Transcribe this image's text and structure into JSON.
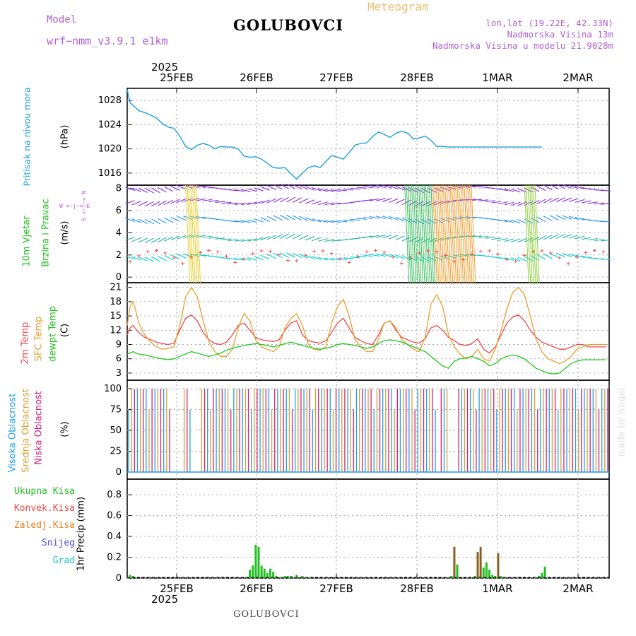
{
  "header": {
    "model_label": "Model",
    "model_name": "wrf−nmm_v3.9.1  e1km",
    "station": "GOLUBOVCI",
    "meteogram": "Meteogram",
    "lonlat": "lon,lat (19.22E, 42.33N)",
    "altitude": "Nadmorska Visina 13m",
    "model_altitude": "Nadmorska Visina u modelu 21.9028m",
    "footer_station": "GOLUBOVCI",
    "credit": "made by Angel"
  },
  "colors": {
    "pressure": "#1ca0e0",
    "temp2m": "#f04848",
    "sfc": "#e8a030",
    "dewpt": "#20c820",
    "purple": "#b060d0",
    "precip_total": "#20c020",
    "precip_conv": "#f04848",
    "precip_frozen": "#f08020",
    "precip_snow": "#5050e0",
    "precip_grad": "#20c0c0",
    "cloud_high": "#20a0e8",
    "cloud_mid": "#d8a030",
    "cloud_low": "#d02080"
  },
  "time_axis": {
    "year": "2025",
    "day_labels": [
      "25FEB",
      "26FEB",
      "27FEB",
      "28FEB",
      "1MAR",
      "2MAR"
    ]
  },
  "panels": {
    "pressure": {
      "ylabel_name": "Pritisak na nivou mora",
      "unit": "(hPa)",
      "ticks": [
        "1016",
        "1020",
        "1024",
        "1028"
      ]
    },
    "wind": {
      "ylabel_name_1": "10m Vjetar",
      "ylabel_name_2": "Brzina i Pravac",
      "unit": "(m/s)",
      "ticks": [
        "0",
        "2",
        "4",
        "6",
        "8"
      ],
      "compass_h": "W <−|−> E",
      "compass_v": "S <−|−> N"
    },
    "temperature": {
      "label_2m": "2m Temp",
      "label_sfc": "SFC Temp",
      "label_dew": "dewpt Temp",
      "unit": "(C)",
      "ticks": [
        "3",
        "6",
        "9",
        "12",
        "15",
        "18",
        "21"
      ]
    },
    "clouds": {
      "label_high": "Visoka Oblacnost",
      "label_mid": "Srednja Oblacnost",
      "label_low": "Niska Oblacnost",
      "unit": "(%)",
      "ticks": [
        "0",
        "25",
        "50",
        "75",
        "100"
      ]
    },
    "precip": {
      "legend": [
        "Ukupna Kisa",
        "Konvek.Kisa",
        "Zaledj.Kisa",
        "Snijeg",
        "Grad"
      ],
      "ylabel": "1hr Precip (mm)",
      "ticks": [
        "0",
        "0.2",
        "0.4",
        "0.6",
        "0.8"
      ]
    }
  },
  "chart_data": [
    {
      "type": "line",
      "name": "pressure",
      "x_hours": [
        0,
        1,
        2,
        4,
        6,
        8,
        10,
        12,
        14,
        16,
        18,
        20,
        22,
        24,
        26,
        28,
        30,
        32,
        34,
        36,
        38,
        40,
        42,
        44,
        46,
        48,
        50,
        52,
        54,
        56,
        58,
        60,
        62,
        64,
        66,
        68,
        70,
        72,
        74,
        76,
        78,
        80,
        82,
        84,
        86,
        88,
        90,
        92,
        94,
        96,
        98,
        100,
        102,
        104,
        106,
        108,
        110,
        112,
        114,
        116,
        118,
        120,
        122,
        124,
        126,
        128,
        130,
        132,
        134,
        136,
        138,
        140,
        142
      ],
      "y": [
        1029.8,
        1027.6,
        1027.2,
        1026.3,
        1026.0,
        1025.6,
        1025.1,
        1024.2,
        1023.6,
        1023.4,
        1022.1,
        1020.4,
        1019.9,
        1020.6,
        1020.9,
        1020.6,
        1020.0,
        1020.4,
        1020.3,
        1020.3,
        1020.0,
        1018.8,
        1018.6,
        1018.7,
        1018.3,
        1017.6,
        1016.9,
        1016.8,
        1016.9,
        1015.9,
        1015.0,
        1016.0,
        1016.9,
        1017.2,
        1016.9,
        1017.9,
        1018.9,
        1018.6,
        1018.3,
        1019.4,
        1020.6,
        1020.9,
        1021.0,
        1022.0,
        1022.8,
        1022.4,
        1021.9,
        1022.6,
        1022.9,
        1022.6,
        1021.6,
        1021.8,
        1022.1,
        1021.4,
        1020.4,
        1020.4,
        1020.3,
        1020.3,
        1020.3,
        1020.3,
        1020.3,
        1020.3,
        1020.3,
        1020.3,
        1020.3,
        1020.3,
        1020.3,
        1020.3,
        1020.3,
        1020.3,
        1020.3,
        1020.3,
        1020.3
      ],
      "ylim": [
        1014,
        1030
      ]
    },
    {
      "type": "line",
      "name": "temperature",
      "x_hours": [
        0,
        1,
        2,
        3,
        4,
        6,
        8,
        10,
        12,
        14,
        16,
        18,
        20,
        22,
        24,
        26,
        28,
        30,
        32,
        34,
        36,
        38,
        40,
        42,
        44,
        46,
        48,
        50,
        52,
        54,
        56,
        58,
        60,
        62,
        64,
        66,
        68,
        70,
        72,
        74,
        76,
        78,
        80,
        82,
        84,
        86,
        88,
        90,
        92,
        94,
        96,
        98,
        100,
        102,
        104,
        106,
        108,
        110,
        112,
        114,
        116,
        118,
        120,
        122,
        124,
        126,
        128,
        130,
        132,
        134,
        136,
        138,
        140,
        142,
        144,
        146,
        148,
        150,
        152,
        154,
        156,
        158,
        160,
        162,
        164
      ],
      "series": [
        {
          "name": "2m Temp",
          "key": "t2m",
          "values": [
            11.0,
            12.5,
            13.0,
            12.2,
            11.5,
            10.5,
            10.0,
            9.5,
            9.2,
            9.0,
            9.3,
            12.0,
            14.5,
            15.2,
            14.0,
            11.5,
            10.0,
            9.2,
            9.0,
            9.5,
            11.0,
            13.0,
            13.5,
            12.0,
            10.5,
            10.0,
            9.8,
            9.6,
            10.0,
            12.0,
            13.5,
            14.0,
            11.0,
            9.8,
            9.5,
            9.3,
            9.8,
            11.5,
            13.5,
            14.5,
            12.5,
            10.5,
            9.8,
            9.2,
            9.0,
            11.0,
            13.5,
            14.0,
            12.0,
            10.5,
            10.0,
            9.5,
            9.3,
            10.2,
            12.5,
            13.0,
            12.0,
            10.5,
            9.8,
            9.0,
            8.8,
            9.2,
            10.2,
            8.0,
            7.2,
            8.5,
            11.0,
            13.5,
            14.8,
            15.2,
            14.0,
            12.0,
            10.5,
            9.5,
            9.0,
            8.5,
            8.0,
            8.0,
            8.5,
            9.0,
            9.0,
            8.5,
            8.5,
            8.5,
            8.5
          ]
        },
        {
          "name": "SFC Temp",
          "key": "tsfc",
          "values": [
            13.0,
            17.0,
            18.0,
            16.0,
            13.5,
            11.0,
            9.5,
            8.5,
            8.0,
            8.2,
            8.5,
            13.0,
            19.0,
            21.0,
            19.0,
            14.0,
            9.5,
            7.5,
            6.5,
            6.5,
            8.0,
            12.5,
            15.5,
            14.0,
            10.0,
            8.5,
            8.0,
            7.5,
            8.5,
            12.5,
            14.5,
            15.5,
            13.0,
            9.0,
            8.0,
            7.8,
            8.5,
            13.5,
            17.0,
            18.5,
            15.0,
            10.0,
            8.5,
            7.5,
            7.5,
            10.0,
            13.5,
            14.0,
            12.5,
            10.0,
            9.0,
            8.0,
            7.5,
            10.5,
            17.5,
            19.5,
            17.0,
            11.0,
            8.5,
            7.0,
            6.0,
            6.5,
            8.0,
            6.0,
            5.5,
            8.0,
            12.0,
            16.5,
            20.0,
            21.0,
            19.5,
            15.0,
            10.0,
            7.5,
            6.0,
            5.5,
            5.0,
            5.5,
            6.5,
            8.0,
            8.5,
            9.0,
            9.0,
            9.0,
            9.0
          ]
        },
        {
          "name": "dewpt Temp",
          "key": "dew",
          "values": [
            7.0,
            7.2,
            7.5,
            7.2,
            7.0,
            6.8,
            6.5,
            6.2,
            6.0,
            5.8,
            6.0,
            6.5,
            7.0,
            7.5,
            7.2,
            6.8,
            6.5,
            6.8,
            7.2,
            7.8,
            8.2,
            8.5,
            8.8,
            9.0,
            9.2,
            9.0,
            8.8,
            8.5,
            8.8,
            9.2,
            9.5,
            9.2,
            8.8,
            8.5,
            8.2,
            8.0,
            8.2,
            8.5,
            9.0,
            9.2,
            9.0,
            8.8,
            8.5,
            8.2,
            8.5,
            9.2,
            9.8,
            10.0,
            9.8,
            9.5,
            9.0,
            8.5,
            8.0,
            7.5,
            6.5,
            5.5,
            4.5,
            4.0,
            5.5,
            6.0,
            6.2,
            6.5,
            6.0,
            5.5,
            4.5,
            5.0,
            6.0,
            6.5,
            6.8,
            6.5,
            6.0,
            5.0,
            4.0,
            3.5,
            3.0,
            2.8,
            3.0,
            4.0,
            5.0,
            5.5,
            5.8,
            5.8,
            5.8,
            5.8,
            5.8
          ]
        }
      ],
      "ylim": [
        1.5,
        22
      ]
    },
    {
      "type": "bar",
      "name": "precipitation",
      "x_hours": [
        1,
        2,
        42,
        43,
        44,
        45,
        46,
        47,
        48,
        49,
        50,
        51,
        53,
        54,
        55,
        56,
        58,
        60,
        62,
        110,
        111,
        112,
        113,
        119,
        120,
        121,
        122,
        123,
        124,
        125,
        126,
        127,
        128,
        129,
        141,
        142,
        143
      ],
      "series": [
        {
          "name": "Ukupna Kisa",
          "key": "total",
          "values": [
            0.03,
            0.02,
            0.08,
            0.12,
            0.32,
            0.3,
            0.12,
            0.09,
            0.05,
            0.09,
            0.06,
            0.02,
            0.01,
            0.02,
            0.02,
            0.02,
            0.03,
            0.02,
            0.01,
            0.01,
            0.02,
            0.3,
            0.13,
            0.02,
            0.25,
            0.3,
            0.1,
            0.15,
            0.08,
            0.03,
            0.02,
            0.24,
            0.02,
            0.01,
            0.02,
            0.05,
            0.11
          ]
        }
      ],
      "ylim": [
        0,
        0.95
      ]
    }
  ]
}
